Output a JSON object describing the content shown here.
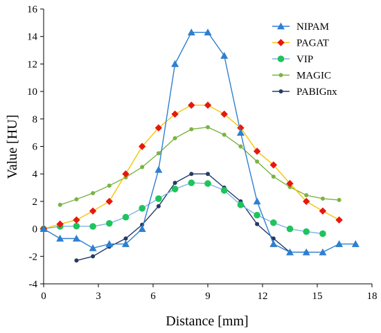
{
  "chart_data": {
    "type": "line",
    "xlabel": "Distance [mm]",
    "ylabel": "Value [HU]",
    "xlim": [
      0,
      18
    ],
    "ylim": [
      -4,
      16
    ],
    "xticks": [
      0,
      3,
      6,
      9,
      12,
      15,
      18
    ],
    "yticks": [
      -4,
      -2,
      0,
      2,
      4,
      6,
      8,
      10,
      12,
      14,
      16
    ],
    "grid": false,
    "legend_position": "top-right",
    "series": [
      {
        "name": "NIPAM",
        "color": "#2e7fd0",
        "marker": "triangle",
        "x": [
          0,
          0.9,
          1.8,
          2.7,
          3.6,
          4.5,
          5.4,
          6.3,
          7.2,
          8.1,
          9.0,
          9.9,
          10.8,
          11.7,
          12.6,
          13.5,
          14.4,
          15.3,
          16.2,
          17.1
        ],
        "y": [
          0,
          -0.7,
          -0.7,
          -1.4,
          -1.1,
          -1.1,
          0,
          4.3,
          12,
          14.3,
          14.3,
          12.6,
          7,
          2,
          -1.1,
          -1.7,
          -1.7,
          -1.7,
          -1.1,
          -1.1
        ]
      },
      {
        "name": "PAGAT",
        "color": "#e8170e",
        "line_color": "#f5c400",
        "marker": "diamond",
        "x": [
          0,
          0.9,
          1.8,
          2.7,
          3.6,
          4.5,
          5.4,
          6.3,
          7.2,
          8.1,
          9.0,
          9.9,
          10.8,
          11.7,
          12.6,
          13.5,
          14.4,
          15.3,
          16.2
        ],
        "y": [
          0,
          0.35,
          0.65,
          1.3,
          2,
          4,
          6,
          7.35,
          8.35,
          9,
          9,
          8.35,
          7.35,
          5.65,
          4.65,
          3.3,
          2,
          1.3,
          0.65
        ]
      },
      {
        "name": "VIP",
        "color": "#1ec45c",
        "line_color": "#7fb3e8",
        "marker": "circle",
        "x": [
          0,
          0.9,
          1.8,
          2.7,
          3.6,
          4.5,
          5.4,
          6.3,
          7.2,
          8.1,
          9.0,
          9.9,
          10.8,
          11.7,
          12.6,
          13.5,
          14.4,
          15.3
        ],
        "y": [
          0,
          0.18,
          0.2,
          0.18,
          0.4,
          0.85,
          1.5,
          2.2,
          2.9,
          3.35,
          3.3,
          2.8,
          1.75,
          1,
          0.45,
          0,
          -0.2,
          -0.35
        ]
      },
      {
        "name": "MAGIC",
        "color": "#7bb342",
        "marker": "small-circle",
        "x": [
          0.9,
          1.8,
          2.7,
          3.6,
          4.5,
          5.4,
          6.3,
          7.2,
          8.1,
          9.0,
          9.9,
          10.8,
          11.7,
          12.6,
          13.5,
          14.4,
          15.3,
          16.2
        ],
        "y": [
          1.75,
          2.15,
          2.6,
          3.15,
          3.75,
          4.5,
          5.5,
          6.6,
          7.25,
          7.4,
          6.85,
          6,
          4.9,
          3.8,
          3.05,
          2.45,
          2.2,
          2.1
        ]
      },
      {
        "name": "PABIGnx",
        "color": "#233a66",
        "marker": "small-circle",
        "x": [
          1.8,
          2.7,
          3.6,
          4.5,
          5.4,
          6.3,
          7.2,
          8.1,
          9.0,
          9.9,
          10.8,
          11.7,
          12.6,
          13.5,
          14.4
        ],
        "y": [
          -2.3,
          -2,
          -1.3,
          -0.7,
          0.3,
          1.65,
          3.35,
          4,
          4,
          3,
          2,
          0.35,
          -0.7,
          -1.7,
          -1.7
        ]
      }
    ]
  }
}
